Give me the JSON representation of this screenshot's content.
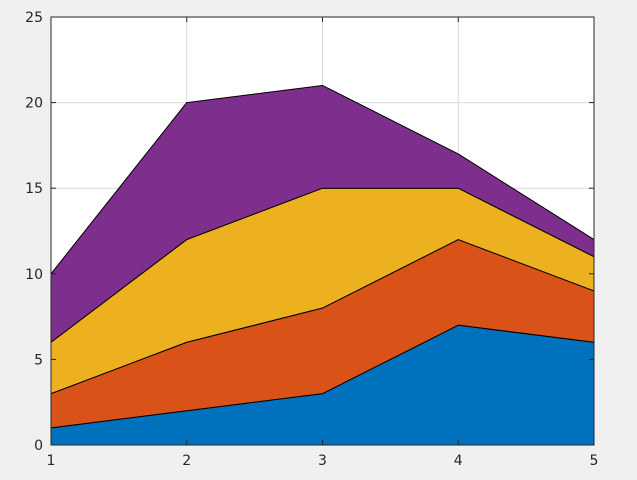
{
  "chart_data": {
    "type": "area",
    "stacked": true,
    "x": [
      1,
      2,
      3,
      4,
      5
    ],
    "xlim": [
      1,
      5
    ],
    "ylim": [
      0,
      25
    ],
    "xticks": [
      1,
      2,
      3,
      4,
      5
    ],
    "yticks": [
      0,
      5,
      10,
      15,
      20,
      25
    ],
    "grid": true,
    "series": [
      {
        "values": [
          1,
          2,
          3,
          7,
          6
        ],
        "color": "#0072bd"
      },
      {
        "values": [
          2,
          4,
          5,
          5,
          3
        ],
        "color": "#d95319"
      },
      {
        "values": [
          3,
          6,
          7,
          3,
          2
        ],
        "color": "#edb120"
      },
      {
        "values": [
          4,
          8,
          6,
          2,
          1
        ],
        "color": "#7e2f8e"
      }
    ]
  }
}
